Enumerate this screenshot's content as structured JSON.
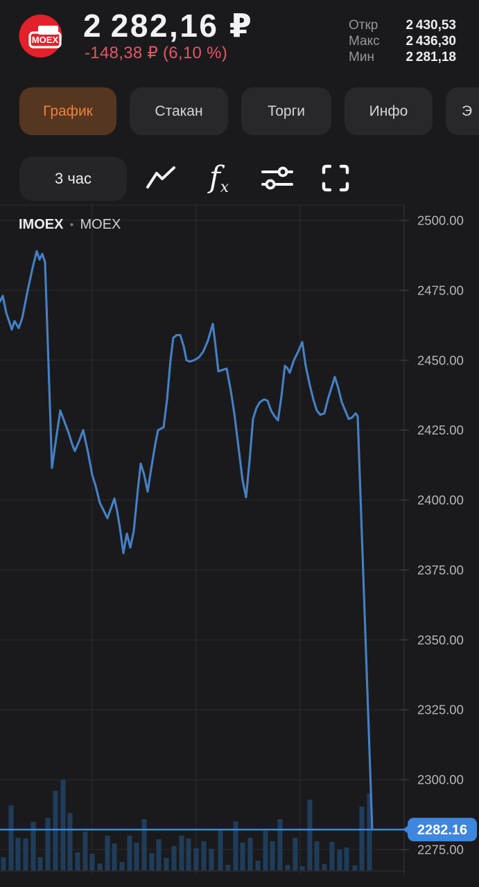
{
  "header": {
    "logo_text": "MOEX",
    "price": "2 282,16 ₽",
    "change": "-148,38 ₽ (6,10 %)",
    "stats": [
      {
        "label": "Откр",
        "value": "2 430,53"
      },
      {
        "label": "Макс",
        "value": "2 436,30"
      },
      {
        "label": "Мин",
        "value": "2 281,18"
      }
    ]
  },
  "tabs": [
    {
      "label": "График"
    },
    {
      "label": "Стакан"
    },
    {
      "label": "Торги"
    },
    {
      "label": "Инфо"
    },
    {
      "label": "Э"
    }
  ],
  "toolbar": {
    "timeframe": "3 час",
    "icons": [
      "line-chart",
      "function-fx",
      "indicators-sliders",
      "fullscreen"
    ]
  },
  "chart_data": {
    "type": "line",
    "symbol": "IMOEX",
    "exchange": "MOEX",
    "y_ticks": [
      2500,
      2475,
      2450,
      2425,
      2400,
      2375,
      2350,
      2325,
      2300,
      2275
    ],
    "grid": true,
    "legend_position": "none",
    "current_price": 2282.16,
    "current_price_label": "2282.16",
    "line_color": "#4680c5",
    "badge_color": "#3e86de",
    "grid_color": "#2c2c2f",
    "axis_label_color": "#b6b6ba",
    "volume_color": "#1f3d5a",
    "series": {
      "name": "IMOEX",
      "points": [
        [
          0,
          2471
        ],
        [
          4,
          2473
        ],
        [
          9,
          2467
        ],
        [
          17,
          2461
        ],
        [
          21,
          2464
        ],
        [
          27,
          2461.5
        ],
        [
          32,
          2465
        ],
        [
          40,
          2475
        ],
        [
          47,
          2483
        ],
        [
          53,
          2489
        ],
        [
          57,
          2486
        ],
        [
          61,
          2488
        ],
        [
          65,
          2485
        ],
        [
          75,
          2411.5
        ],
        [
          81,
          2422
        ],
        [
          87,
          2432
        ],
        [
          93,
          2428
        ],
        [
          99,
          2424
        ],
        [
          104,
          2420
        ],
        [
          108,
          2417.5
        ],
        [
          114,
          2421
        ],
        [
          120,
          2425
        ],
        [
          127,
          2417
        ],
        [
          133,
          2409
        ],
        [
          138,
          2405
        ],
        [
          144,
          2399
        ],
        [
          150,
          2396
        ],
        [
          155,
          2393.5
        ],
        [
          160,
          2397
        ],
        [
          165,
          2400.5
        ],
        [
          169,
          2396
        ],
        [
          173,
          2390
        ],
        [
          178,
          2381
        ],
        [
          183,
          2388
        ],
        [
          188,
          2383
        ],
        [
          193,
          2389
        ],
        [
          199,
          2404
        ],
        [
          203,
          2413
        ],
        [
          208,
          2409
        ],
        [
          213,
          2403
        ],
        [
          218,
          2411
        ],
        [
          224,
          2420
        ],
        [
          228,
          2425
        ],
        [
          236,
          2426
        ],
        [
          241,
          2436
        ],
        [
          246,
          2450
        ],
        [
          250,
          2458
        ],
        [
          255,
          2459
        ],
        [
          260,
          2459
        ],
        [
          265,
          2455
        ],
        [
          269,
          2450
        ],
        [
          274,
          2449.5
        ],
        [
          280,
          2450
        ],
        [
          287,
          2451
        ],
        [
          293,
          2453
        ],
        [
          300,
          2457
        ],
        [
          307,
          2463
        ],
        [
          311,
          2455
        ],
        [
          315,
          2446
        ],
        [
          321,
          2446.5
        ],
        [
          327,
          2447
        ],
        [
          333,
          2439
        ],
        [
          338,
          2431
        ],
        [
          344,
          2419
        ],
        [
          350,
          2407
        ],
        [
          355,
          2401
        ],
        [
          360,
          2414
        ],
        [
          365,
          2429
        ],
        [
          370,
          2433
        ],
        [
          375,
          2435
        ],
        [
          381,
          2436
        ],
        [
          386,
          2435.5
        ],
        [
          391,
          2432
        ],
        [
          396,
          2430
        ],
        [
          401,
          2428.5
        ],
        [
          406,
          2437
        ],
        [
          411,
          2448
        ],
        [
          415,
          2447
        ],
        [
          418,
          2445.5
        ],
        [
          424,
          2450
        ],
        [
          430,
          2453
        ],
        [
          436,
          2456.5
        ],
        [
          441,
          2448
        ],
        [
          447,
          2441
        ],
        [
          452,
          2436
        ],
        [
          457,
          2432
        ],
        [
          462,
          2430.5
        ],
        [
          468,
          2431
        ],
        [
          473,
          2436
        ],
        [
          478,
          2440
        ],
        [
          483,
          2444
        ],
        [
          488,
          2440
        ],
        [
          493,
          2435
        ],
        [
          498,
          2432
        ],
        [
          503,
          2429
        ],
        [
          508,
          2429.5
        ],
        [
          513,
          2431
        ],
        [
          516,
          2430
        ],
        [
          537,
          2282.16
        ]
      ]
    },
    "volume": {
      "bars": [
        [
          5,
          19
        ],
        [
          16,
          94
        ],
        [
          26,
          47
        ],
        [
          37,
          46
        ],
        [
          48,
          70
        ],
        [
          58,
          19
        ],
        [
          69,
          76
        ],
        [
          80,
          115
        ],
        [
          91,
          131
        ],
        [
          101,
          83
        ],
        [
          112,
          26
        ],
        [
          123,
          56
        ],
        [
          133,
          24
        ],
        [
          144,
          10
        ],
        [
          155,
          50
        ],
        [
          165,
          39
        ],
        [
          176,
          12
        ],
        [
          187,
          50
        ],
        [
          197,
          40
        ],
        [
          208,
          74
        ],
        [
          219,
          25
        ],
        [
          229,
          45
        ],
        [
          240,
          18
        ],
        [
          251,
          35
        ],
        [
          262,
          50
        ],
        [
          272,
          46
        ],
        [
          283,
          32
        ],
        [
          294,
          42
        ],
        [
          305,
          31
        ],
        [
          318,
          59
        ],
        [
          329,
          8
        ],
        [
          340,
          71
        ],
        [
          350,
          40
        ],
        [
          361,
          47
        ],
        [
          372,
          14
        ],
        [
          383,
          57
        ],
        [
          393,
          42
        ],
        [
          404,
          74
        ],
        [
          415,
          8
        ],
        [
          426,
          47
        ],
        [
          436,
          6
        ],
        [
          447,
          102
        ],
        [
          457,
          42
        ],
        [
          468,
          9
        ],
        [
          479,
          41
        ],
        [
          490,
          30
        ],
        [
          500,
          33
        ],
        [
          512,
          7
        ],
        [
          522,
          92
        ],
        [
          533,
          111
        ]
      ]
    }
  }
}
